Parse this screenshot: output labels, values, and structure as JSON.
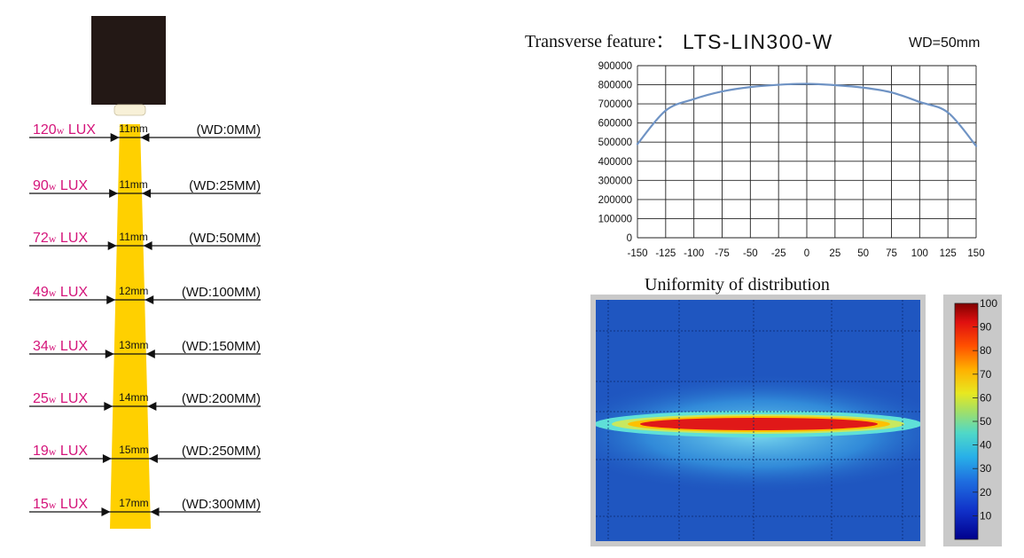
{
  "beam_diagram": {
    "rows": [
      {
        "lux_prefix": "120",
        "lux_w": "w",
        "lux_suffix": " LUX",
        "width": "11mm",
        "wd": "(WD:0MM)"
      },
      {
        "lux_prefix": "90",
        "lux_w": "w",
        "lux_suffix": " LUX",
        "width": "11mm",
        "wd": "(WD:25MM)"
      },
      {
        "lux_prefix": "72",
        "lux_w": "w",
        "lux_suffix": " LUX",
        "width": "11mm",
        "wd": "(WD:50MM)"
      },
      {
        "lux_prefix": "49",
        "lux_w": "w",
        "lux_suffix": " LUX",
        "width": "12mm",
        "wd": "(WD:100MM)"
      },
      {
        "lux_prefix": "34",
        "lux_w": "w",
        "lux_suffix": " LUX",
        "width": "13mm",
        "wd": "(WD:150MM)"
      },
      {
        "lux_prefix": "25",
        "lux_w": "w",
        "lux_suffix": " LUX",
        "width": "14mm",
        "wd": "(WD:200MM)"
      },
      {
        "lux_prefix": "19",
        "lux_w": "w",
        "lux_suffix": " LUX",
        "width": "15mm",
        "wd": "(WD:250MM)"
      },
      {
        "lux_prefix": "15",
        "lux_w": "w",
        "lux_suffix": " LUX",
        "width": "17mm",
        "wd": "(WD:300MM)"
      }
    ],
    "colors": {
      "lux_text": "#d4147a",
      "beam": "#ffd000",
      "head": "#231815"
    }
  },
  "chart_data": [
    {
      "type": "line",
      "title_prefix": "Transverse feature：",
      "title_model": "LTS-LIN300-W",
      "title_wd": "WD=50mm",
      "x": [
        -150,
        -125,
        -100,
        -75,
        -50,
        -25,
        0,
        25,
        50,
        75,
        100,
        125,
        150
      ],
      "series": [
        {
          "values": [
            490000,
            665000,
            725000,
            765000,
            788000,
            800000,
            805000,
            798000,
            785000,
            760000,
            710000,
            655000,
            480000
          ]
        }
      ],
      "xlim": [
        -150,
        150
      ],
      "ylim": [
        0,
        900000
      ],
      "xticks": [
        "-150",
        "-125",
        "-100",
        "-75",
        "-50",
        "-25",
        "0",
        "25",
        "50",
        "75",
        "100",
        "125",
        "150"
      ],
      "yticks": [
        "0",
        "100000",
        "200000",
        "300000",
        "400000",
        "500000",
        "600000",
        "700000",
        "800000",
        "900000"
      ],
      "grid": true,
      "line_color": "#6f93c4"
    },
    {
      "type": "heatmap",
      "title": "Uniformity of distribution",
      "colorbar_ticks": [
        "100",
        "90",
        "80",
        "70",
        "60",
        "50",
        "40",
        "30",
        "20",
        "10"
      ],
      "colorbar_range": [
        0,
        100
      ],
      "background_color": "#1f56c0",
      "hot_color": "#e01818"
    }
  ]
}
